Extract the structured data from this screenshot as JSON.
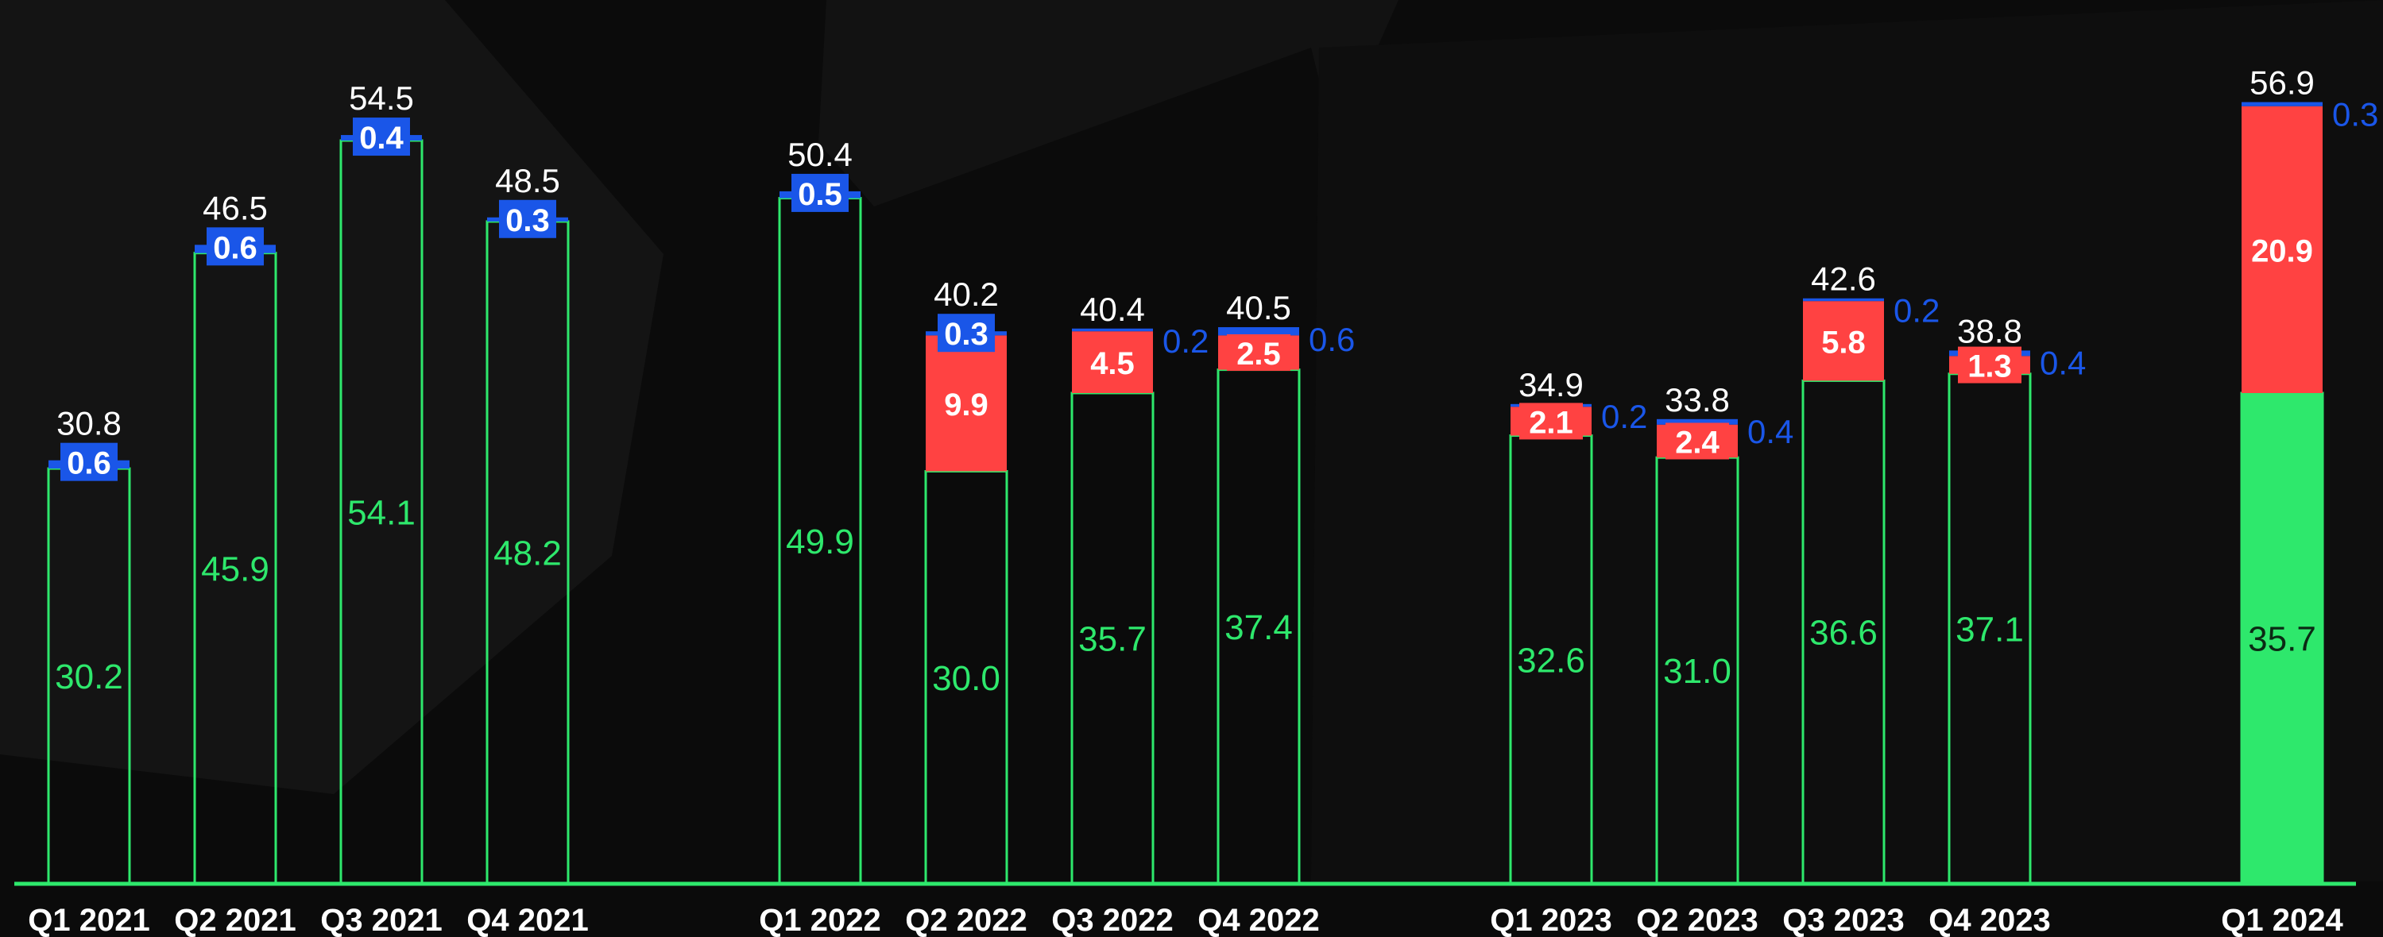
{
  "chart_data": {
    "type": "bar",
    "stacked": true,
    "title": "",
    "xlabel": "",
    "ylabel": "",
    "ylim": [
      0,
      60
    ],
    "grid": false,
    "legend": "none",
    "categories": [
      "Q1 2021",
      "Q2 2021",
      "Q3 2021",
      "Q4 2021",
      "Q1 2022",
      "Q2 2022",
      "Q3 2022",
      "Q4 2022",
      "Q1 2023",
      "Q2 2023",
      "Q3 2023",
      "Q4 2023",
      "Q1 2024"
    ],
    "series": [
      {
        "color": "#2ee86c",
        "values": [
          30.2,
          45.9,
          54.1,
          48.2,
          49.9,
          30.0,
          35.7,
          37.4,
          32.6,
          31.0,
          36.6,
          37.1,
          35.7
        ],
        "labels": [
          "30.2",
          "45.9",
          "54.1",
          "48.2",
          "49.9",
          "30.0",
          "35.7",
          "37.4",
          "32.6",
          "31.0",
          "36.6",
          "37.1",
          "35.7"
        ]
      },
      {
        "color": "#ff4242",
        "values": [
          0,
          0,
          0,
          0,
          0,
          9.9,
          4.5,
          2.5,
          2.1,
          2.4,
          5.8,
          1.3,
          20.9
        ],
        "labels": [
          "",
          "",
          "",
          "",
          "",
          "9.9",
          "4.5",
          "2.5",
          "2.1",
          "2.4",
          "5.8",
          "1.3",
          "20.9"
        ]
      },
      {
        "color": "#1a56e8",
        "values": [
          0.6,
          0.6,
          0.4,
          0.3,
          0.5,
          0.3,
          0.2,
          0.6,
          0.2,
          0.4,
          0.2,
          0.4,
          0.3
        ],
        "labels": [
          "0.6",
          "0.6",
          "0.4",
          "0.3",
          "0.5",
          "0.3",
          "0.2",
          "0.6",
          "0.2",
          "0.4",
          "0.2",
          "0.4",
          "0.3"
        ]
      }
    ],
    "totals": [
      "30.8",
      "46.5",
      "54.5",
      "48.5",
      "50.4",
      "40.2",
      "40.4",
      "40.5",
      "34.9",
      "33.8",
      "42.6",
      "38.8",
      "56.9"
    ],
    "colors": {
      "background": "#0b0b0b",
      "outline": "#2ee86c",
      "total_text": "#ffffff",
      "blue_text": "#1a56e8",
      "blue_box": "#1a56e8"
    }
  }
}
